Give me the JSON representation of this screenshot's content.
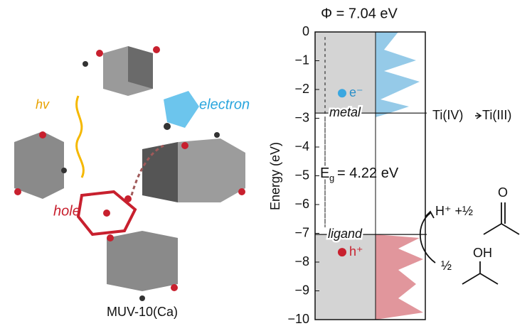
{
  "chart_data": {
    "type": "energy-diagram",
    "title": "Φ = 7.04 eV",
    "ylabel": "Energy (eV)",
    "ylim": [
      -10,
      0
    ],
    "yticks": [
      0,
      {
        "value": -1,
        "label": "−1"
      },
      {
        "value": -2,
        "label": "−2"
      },
      {
        "value": -3,
        "label": "−3"
      },
      {
        "value": -4,
        "label": "−4"
      },
      {
        "value": -5,
        "label": "−5"
      },
      {
        "value": -6,
        "label": "−6"
      },
      {
        "value": -7,
        "label": "−7"
      },
      {
        "value": -8,
        "label": "−8"
      },
      {
        "value": -9,
        "label": "−9"
      },
      {
        "value": -10,
        "label": "−10"
      }
    ],
    "levels": [
      {
        "name": "metal",
        "value": -2.82
      },
      {
        "name": "ligand",
        "value": -7.04
      }
    ],
    "gap": {
      "symbol": "E",
      "subscript": "g",
      "text": "= 4.22 eV"
    },
    "carriers": {
      "electron": "e⁻",
      "hole": "h⁺"
    },
    "reduction": {
      "from": "Ti(IV)",
      "to": "Ti(III)"
    },
    "oxidation": {
      "product": "H⁺ +½",
      "reactant_coef": "½",
      "oh": "OH",
      "o": "O"
    },
    "structure": {
      "name": "MUV-10(Ca)",
      "light": "hv",
      "electron": "electron",
      "hole": "hole"
    }
  }
}
